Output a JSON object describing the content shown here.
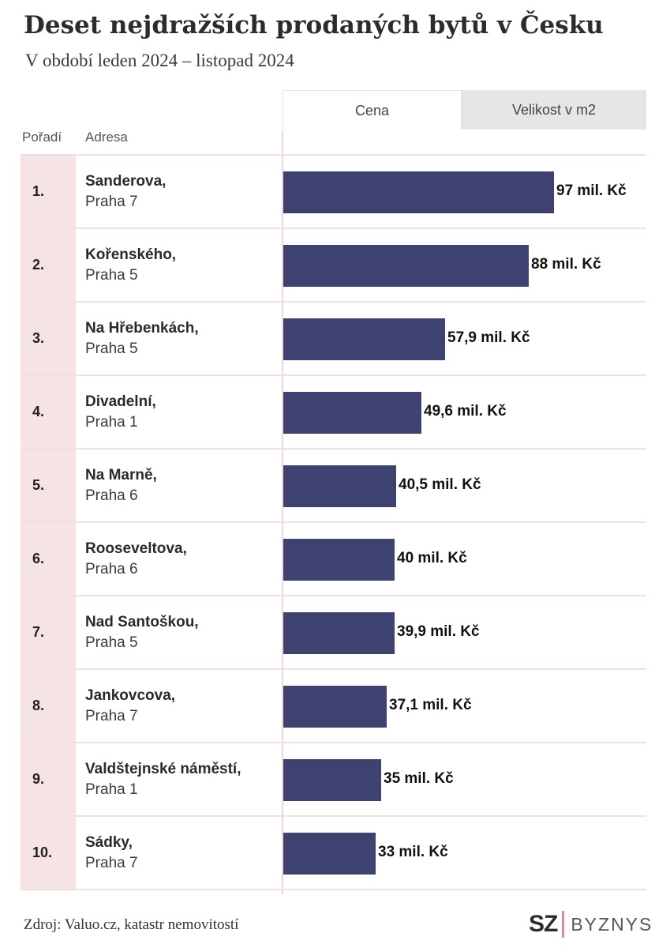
{
  "header": {
    "title": "Deset nejdražších prodaných bytů v Česku",
    "subtitle": "V období leden 2024 – listopad 2024"
  },
  "tabs": [
    {
      "label": "Cena",
      "active": true
    },
    {
      "label": "Velikost v m2",
      "active": false
    }
  ],
  "columns": {
    "rank": "Pořadí",
    "address": "Adresa"
  },
  "colors": {
    "bar": "#3d4270",
    "rank_bg": "#f6e3e4",
    "accent": "#d48f95"
  },
  "chart_data": {
    "type": "bar",
    "orientation": "horizontal",
    "title": "Deset nejdražších prodaných bytů v Česku",
    "subtitle": "V období leden 2024 – listopad 2024",
    "unit": "mil. Kč",
    "xlim": [
      0,
      97
    ],
    "rows": [
      {
        "rank": "1.",
        "street": "Sanderova,",
        "district": "Praha 7",
        "value": 97,
        "label": "97 mil. Kč"
      },
      {
        "rank": "2.",
        "street": "Kořenského,",
        "district": "Praha 5",
        "value": 88,
        "label": "88 mil. Kč"
      },
      {
        "rank": "3.",
        "street": "Na Hřebenkách,",
        "district": "Praha 5",
        "value": 57.9,
        "label": "57,9 mil. Kč"
      },
      {
        "rank": "4.",
        "street": "Divadelní,",
        "district": "Praha 1",
        "value": 49.6,
        "label": "49,6 mil. Kč"
      },
      {
        "rank": "5.",
        "street": "Na Marně,",
        "district": "Praha 6",
        "value": 40.5,
        "label": "40,5 mil. Kč"
      },
      {
        "rank": "6.",
        "street": "Rooseveltova,",
        "district": "Praha 6",
        "value": 40,
        "label": "40 mil. Kč"
      },
      {
        "rank": "7.",
        "street": "Nad Santoškou,",
        "district": "Praha 5",
        "value": 39.9,
        "label": "39,9 mil. Kč"
      },
      {
        "rank": "8.",
        "street": "Jankovcova,",
        "district": "Praha 7",
        "value": 37.1,
        "label": "37,1 mil. Kč"
      },
      {
        "rank": "9.",
        "street": "Valdštejnské náměstí,",
        "district": "Praha 1",
        "value": 35,
        "label": "35 mil. Kč"
      },
      {
        "rank": "10.",
        "street": "Sádky,",
        "district": "Praha 7",
        "value": 33,
        "label": "33 mil. Kč"
      }
    ]
  },
  "footer": {
    "source": "Zdroj: Valuo.cz, katastr nemovitostí",
    "logo_primary": "SZ",
    "logo_secondary": "BYZNYS"
  }
}
